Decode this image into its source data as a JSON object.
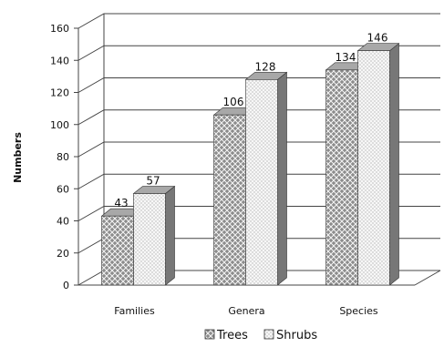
{
  "chart_data": {
    "type": "bar",
    "categories": [
      "Families",
      "Genera",
      "Species"
    ],
    "series": [
      {
        "name": "Trees",
        "values": [
          43,
          106,
          134
        ]
      },
      {
        "name": "Shrubs",
        "values": [
          57,
          128,
          146
        ]
      }
    ],
    "data_labels": [
      [
        "43",
        "106",
        "134"
      ],
      [
        "57",
        "128",
        "146"
      ]
    ],
    "ylabel": "Numbers",
    "ylim": [
      0,
      160
    ],
    "yticks": [
      0,
      20,
      40,
      60,
      80,
      100,
      120,
      140,
      160
    ],
    "grid": true,
    "legend_position": "bottom",
    "bar_style": "3d",
    "colors": {
      "trees": "#8c8c8c",
      "shrubs": "#f2f2f2",
      "grid": "#444444",
      "side": "#777777",
      "top": "#a8a8a8"
    }
  }
}
